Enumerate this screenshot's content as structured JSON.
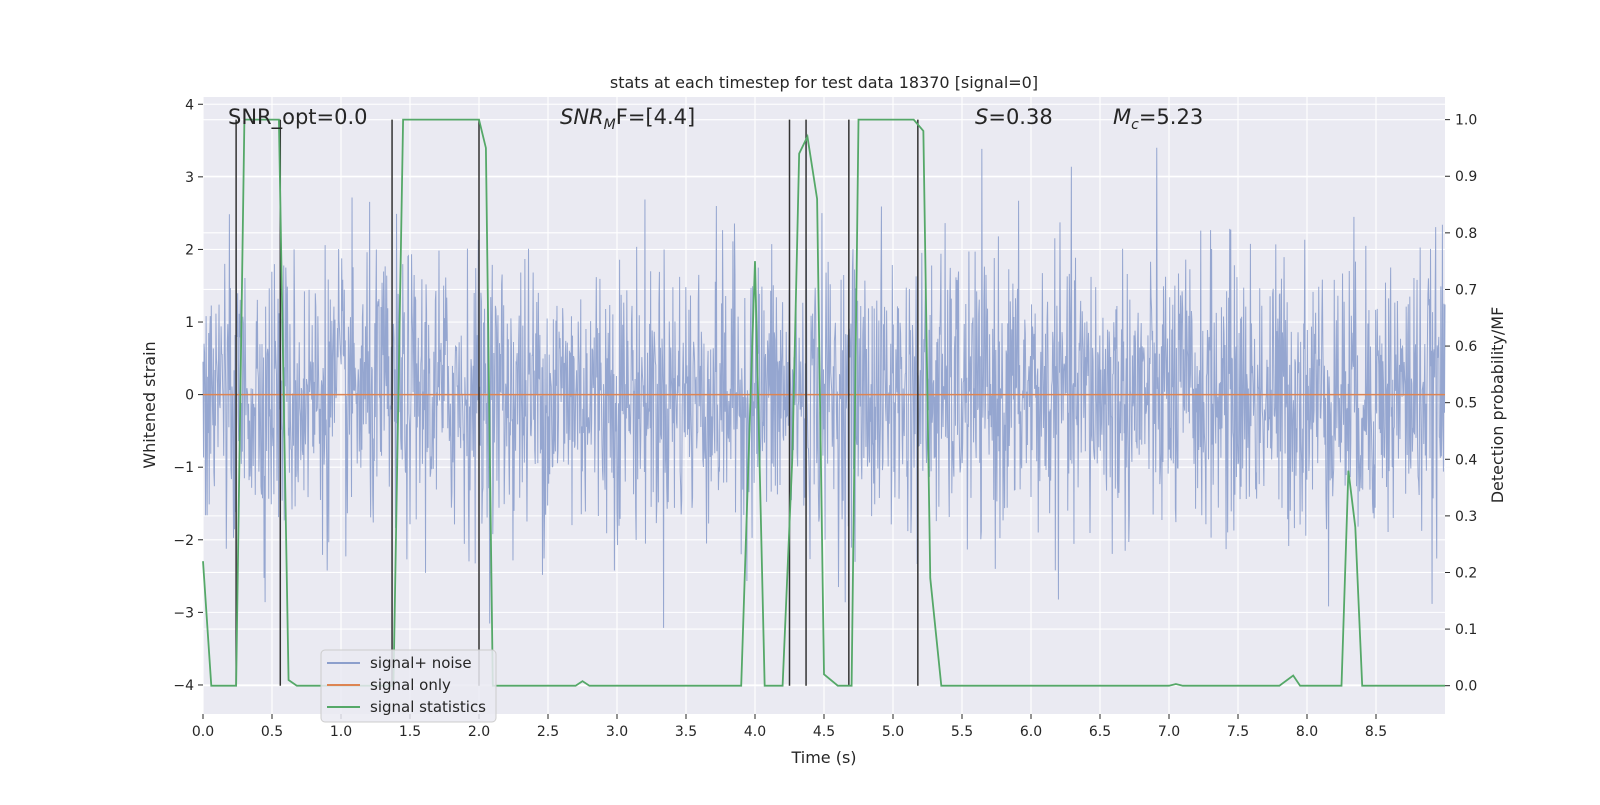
{
  "chart_data": {
    "type": "line",
    "title": "stats at each timestep for test data 18370 [signal=0]",
    "xlabel": "Time (s)",
    "ylabel_left": "Whitened strain",
    "ylabel_right": "Detection probability/MF",
    "xlim": [
      0.0,
      9.0
    ],
    "ylim_left": [
      -4.4,
      4.1
    ],
    "ylim_right": [
      -0.05,
      1.04
    ],
    "x_ticks": [
      "0.0",
      "0.5",
      "1.0",
      "1.5",
      "2.0",
      "2.5",
      "3.0",
      "3.5",
      "4.0",
      "4.5",
      "5.0",
      "5.5",
      "6.0",
      "6.5",
      "7.0",
      "7.5",
      "8.0",
      "8.5"
    ],
    "x_tick_values": [
      0.0,
      0.5,
      1.0,
      1.5,
      2.0,
      2.5,
      3.0,
      3.5,
      4.0,
      4.5,
      5.0,
      5.5,
      6.0,
      6.5,
      7.0,
      7.5,
      8.0,
      8.5
    ],
    "y_left_ticks": [
      "4",
      "3",
      "2",
      "1",
      "0",
      "−1",
      "−2",
      "−3",
      "−4"
    ],
    "y_left_tick_values": [
      4,
      3,
      2,
      1,
      0,
      -1,
      -2,
      -3,
      -4
    ],
    "y_right_ticks": [
      "1.0",
      "0.9",
      "0.8",
      "0.7",
      "0.6",
      "0.5",
      "0.4",
      "0.3",
      "0.2",
      "0.1",
      "0.0"
    ],
    "y_right_tick_values": [
      1.0,
      0.9,
      0.8,
      0.7,
      0.6,
      0.5,
      0.4,
      0.3,
      0.2,
      0.1,
      0.0
    ],
    "grid": true,
    "annotations": {
      "snr_opt": "SNR_opt=0.0",
      "snr_mf_label": "SNR",
      "snr_mf_sub": "M",
      "snr_mf_rest": "F=[4.4]",
      "s_label": "S",
      "s_rest": "=0.38",
      "mc_label": "M",
      "mc_sub": "c",
      "mc_rest": "=5.23"
    },
    "legend": {
      "position": "lower-left",
      "entries": [
        "signal+ noise",
        "signal only",
        "signal statistics"
      ]
    },
    "series": [
      {
        "name": "signal+ noise",
        "axis": "left",
        "color": "#8c9fcc",
        "style": "noise",
        "amplitude_typical": 1.8,
        "amplitude_peak": 3.4
      },
      {
        "name": "signal only",
        "axis": "left",
        "color": "#dd8452",
        "x": [
          0.0,
          9.0
        ],
        "values": [
          0.0,
          0.0
        ]
      },
      {
        "name": "signal statistics",
        "axis": "right",
        "color": "#55a868",
        "x": [
          0.0,
          0.06,
          0.2,
          0.24,
          0.3,
          0.55,
          0.62,
          0.68,
          0.8,
          1.3,
          1.38,
          1.45,
          1.5,
          2.0,
          2.05,
          2.1,
          2.7,
          2.75,
          2.8,
          3.9,
          4.0,
          4.07,
          4.2,
          4.27,
          4.32,
          4.38,
          4.45,
          4.5,
          4.6,
          4.7,
          4.75,
          5.15,
          5.22,
          5.27,
          5.35,
          7.0,
          7.05,
          7.1,
          7.8,
          7.9,
          7.95,
          8.2,
          8.25,
          8.3,
          8.35,
          8.4,
          9.0
        ],
        "values": [
          0.22,
          0.0,
          0.0,
          0.0,
          1.0,
          1.0,
          0.01,
          0.0,
          0.0,
          0.0,
          0.0,
          1.0,
          1.0,
          1.0,
          0.95,
          0.0,
          0.0,
          0.008,
          0.0,
          0.0,
          0.75,
          0.0,
          0.0,
          0.4,
          0.94,
          0.97,
          0.86,
          0.02,
          0.0,
          0.0,
          1.0,
          1.0,
          0.98,
          0.19,
          0.0,
          0.0,
          0.003,
          0.0,
          0.0,
          0.018,
          0.0,
          0.0,
          0.0,
          0.38,
          0.28,
          0.0,
          0.0
        ]
      }
    ],
    "vertical_markers": {
      "x": [
        0.24,
        0.56,
        1.37,
        2.0,
        4.25,
        4.37,
        4.68,
        5.18
      ],
      "range_right": [
        0.0,
        1.0
      ],
      "color": "#333333"
    }
  }
}
